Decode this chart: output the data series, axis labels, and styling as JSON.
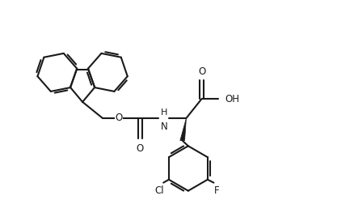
{
  "background_color": "#ffffff",
  "line_color": "#1a1a1a",
  "lw": 1.5,
  "figsize": [
    4.38,
    2.68
  ],
  "dpi": 100,
  "fontsize": 8.5,
  "labels": {
    "O": "O",
    "NH": "H\nN",
    "COOH_O": "O",
    "OH": "OH",
    "Cl": "Cl",
    "F": "F"
  },
  "xlim": [
    0,
    9.0
  ],
  "ylim": [
    0,
    5.5
  ]
}
